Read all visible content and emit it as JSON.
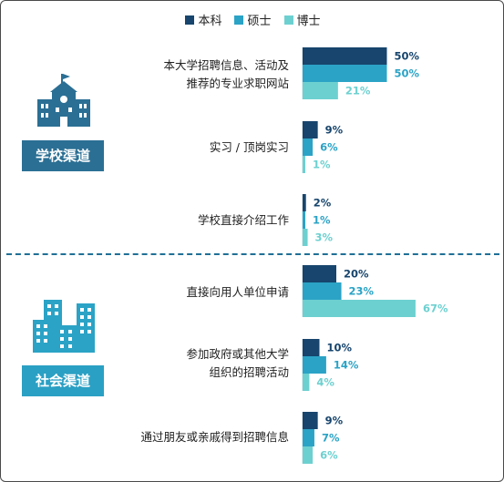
{
  "colors": {
    "benke": "#17456d",
    "shuoshi": "#2ba3c6",
    "boshi": "#6dd0d0",
    "badge": "#2b6f94",
    "badge2": "#2aa0c4",
    "school_icon": "#2b6f94",
    "social_icon": "#2ba3c6",
    "divider": "#1f6f95"
  },
  "groups": {
    "school": {
      "label": "学校渠道",
      "icon": "school-building-icon"
    },
    "social": {
      "label": "社会渠道",
      "icon": "city-buildings-icon"
    }
  },
  "chart_data": {
    "type": "bar",
    "orientation": "horizontal",
    "legend_position": "top-center",
    "unit": "%",
    "categories": [
      [
        "本大学招聘信息、活动及",
        "推荐的专业求职网站"
      ],
      [
        "实习 / 顶岗实习"
      ],
      [
        "学校直接介绍工作"
      ],
      [
        "直接向用人单位申请"
      ],
      [
        "参加政府或其他大学",
        "组织的招聘活动"
      ],
      [
        "通过朋友或亲戚得到招聘信息"
      ]
    ],
    "series": [
      {
        "name": "本科",
        "values": [
          50,
          9,
          2,
          20,
          10,
          9
        ]
      },
      {
        "name": "硕士",
        "values": [
          50,
          6,
          1,
          23,
          14,
          7
        ]
      },
      {
        "name": "博士",
        "values": [
          21,
          1,
          3,
          67,
          4,
          6
        ]
      }
    ],
    "value_labels": [
      [
        "50%",
        "9%",
        "2%",
        "20%",
        "10%",
        "9%"
      ],
      [
        "50%",
        "6%",
        "1%",
        "23%",
        "14%",
        "7%"
      ],
      [
        "21%",
        "1%",
        "3%",
        "67%",
        "4%",
        "6%"
      ]
    ],
    "xlim": [
      0,
      100
    ]
  }
}
